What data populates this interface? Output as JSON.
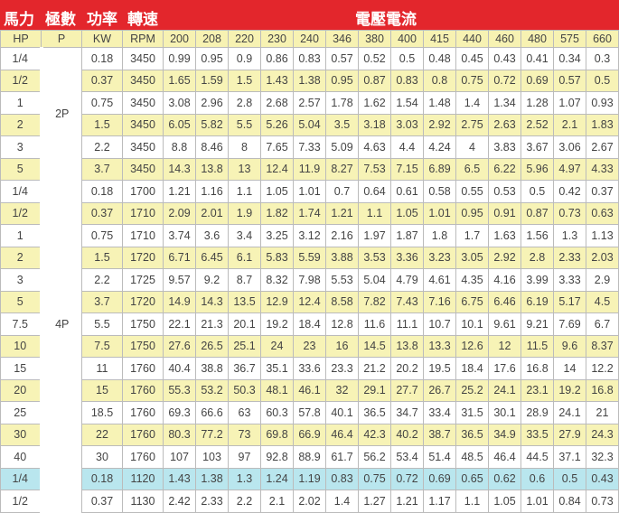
{
  "header": {
    "hp_title": "馬力",
    "pole_title": "極數",
    "power_title": "功率",
    "speed_title": "轉速",
    "voltage_title": "電壓電流",
    "columns": [
      "HP",
      "P",
      "KW",
      "RPM",
      "200",
      "208",
      "220",
      "230",
      "240",
      "346",
      "380",
      "400",
      "415",
      "440",
      "460",
      "480",
      "575",
      "660"
    ]
  },
  "colors": {
    "header_red": "#e3262c",
    "stripe_yellow": "#f7f3b6",
    "highlight_cyan": "#b9e6ee"
  },
  "groups": [
    {
      "pole": "2P",
      "rows": [
        {
          "hp": "1/4",
          "kw": "0.18",
          "rpm": "3450",
          "style": "w",
          "v": [
            "0.99",
            "0.95",
            "0.9",
            "0.86",
            "0.83",
            "0.57",
            "0.52",
            "0.5",
            "0.48",
            "0.45",
            "0.43",
            "0.41",
            "0.34",
            "0.3"
          ]
        },
        {
          "hp": "1/2",
          "kw": "0.37",
          "rpm": "3450",
          "style": "y",
          "v": [
            "1.65",
            "1.59",
            "1.5",
            "1.43",
            "1.38",
            "0.95",
            "0.87",
            "0.83",
            "0.8",
            "0.75",
            "0.72",
            "0.69",
            "0.57",
            "0.5"
          ]
        },
        {
          "hp": "1",
          "kw": "0.75",
          "rpm": "3450",
          "style": "w",
          "v": [
            "3.08",
            "2.96",
            "2.8",
            "2.68",
            "2.57",
            "1.78",
            "1.62",
            "1.54",
            "1.48",
            "1.4",
            "1.34",
            "1.28",
            "1.07",
            "0.93"
          ]
        },
        {
          "hp": "2",
          "kw": "1.5",
          "rpm": "3450",
          "style": "y",
          "v": [
            "6.05",
            "5.82",
            "5.5",
            "5.26",
            "5.04",
            "3.5",
            "3.18",
            "3.03",
            "2.92",
            "2.75",
            "2.63",
            "2.52",
            "2.1",
            "1.83"
          ]
        },
        {
          "hp": "3",
          "kw": "2.2",
          "rpm": "3450",
          "style": "w",
          "v": [
            "8.8",
            "8.46",
            "8",
            "7.65",
            "7.33",
            "5.09",
            "4.63",
            "4.4",
            "4.24",
            "4",
            "3.83",
            "3.67",
            "3.06",
            "2.67"
          ]
        },
        {
          "hp": "5",
          "kw": "3.7",
          "rpm": "3450",
          "style": "y",
          "v": [
            "14.3",
            "13.8",
            "13",
            "12.4",
            "11.9",
            "8.27",
            "7.53",
            "7.15",
            "6.89",
            "6.5",
            "6.22",
            "5.96",
            "4.97",
            "4.33"
          ]
        }
      ]
    },
    {
      "pole": "4P",
      "rows": [
        {
          "hp": "1/4",
          "kw": "0.18",
          "rpm": "1700",
          "style": "w",
          "v": [
            "1.21",
            "1.16",
            "1.1",
            "1.05",
            "1.01",
            "0.7",
            "0.64",
            "0.61",
            "0.58",
            "0.55",
            "0.53",
            "0.5",
            "0.42",
            "0.37"
          ]
        },
        {
          "hp": "1/2",
          "kw": "0.37",
          "rpm": "1710",
          "style": "y",
          "v": [
            "2.09",
            "2.01",
            "1.9",
            "1.82",
            "1.74",
            "1.21",
            "1.1",
            "1.05",
            "1.01",
            "0.95",
            "0.91",
            "0.87",
            "0.73",
            "0.63"
          ]
        },
        {
          "hp": "1",
          "kw": "0.75",
          "rpm": "1710",
          "style": "w",
          "v": [
            "3.74",
            "3.6",
            "3.4",
            "3.25",
            "3.12",
            "2.16",
            "1.97",
            "1.87",
            "1.8",
            "1.7",
            "1.63",
            "1.56",
            "1.3",
            "1.13"
          ]
        },
        {
          "hp": "2",
          "kw": "1.5",
          "rpm": "1720",
          "style": "y",
          "v": [
            "6.71",
            "6.45",
            "6.1",
            "5.83",
            "5.59",
            "3.88",
            "3.53",
            "3.36",
            "3.23",
            "3.05",
            "2.92",
            "2.8",
            "2.33",
            "2.03"
          ]
        },
        {
          "hp": "3",
          "kw": "2.2",
          "rpm": "1725",
          "style": "w",
          "v": [
            "9.57",
            "9.2",
            "8.7",
            "8.32",
            "7.98",
            "5.53",
            "5.04",
            "4.79",
            "4.61",
            "4.35",
            "4.16",
            "3.99",
            "3.33",
            "2.9"
          ]
        },
        {
          "hp": "5",
          "kw": "3.7",
          "rpm": "1720",
          "style": "y",
          "v": [
            "14.9",
            "14.3",
            "13.5",
            "12.9",
            "12.4",
            "8.58",
            "7.82",
            "7.43",
            "7.16",
            "6.75",
            "6.46",
            "6.19",
            "5.17",
            "4.5"
          ]
        },
        {
          "hp": "7.5",
          "kw": "5.5",
          "rpm": "1750",
          "style": "w",
          "v": [
            "22.1",
            "21.3",
            "20.1",
            "19.2",
            "18.4",
            "12.8",
            "11.6",
            "11.1",
            "10.7",
            "10.1",
            "9.61",
            "9.21",
            "7.69",
            "6.7"
          ]
        },
        {
          "hp": "10",
          "kw": "7.5",
          "rpm": "1750",
          "style": "y",
          "v": [
            "27.6",
            "26.5",
            "25.1",
            "24",
            "23",
            "16",
            "14.5",
            "13.8",
            "13.3",
            "12.6",
            "12",
            "11.5",
            "9.6",
            "8.37"
          ]
        },
        {
          "hp": "15",
          "kw": "11",
          "rpm": "1760",
          "style": "w",
          "v": [
            "40.4",
            "38.8",
            "36.7",
            "35.1",
            "33.6",
            "23.3",
            "21.2",
            "20.2",
            "19.5",
            "18.4",
            "17.6",
            "16.8",
            "14",
            "12.2"
          ]
        },
        {
          "hp": "20",
          "kw": "15",
          "rpm": "1760",
          "style": "y",
          "v": [
            "55.3",
            "53.2",
            "50.3",
            "48.1",
            "46.1",
            "32",
            "29.1",
            "27.7",
            "26.7",
            "25.2",
            "24.1",
            "23.1",
            "19.2",
            "16.8"
          ]
        },
        {
          "hp": "25",
          "kw": "18.5",
          "rpm": "1760",
          "style": "w",
          "v": [
            "69.3",
            "66.6",
            "63",
            "60.3",
            "57.8",
            "40.1",
            "36.5",
            "34.7",
            "33.4",
            "31.5",
            "30.1",
            "28.9",
            "24.1",
            "21"
          ]
        },
        {
          "hp": "30",
          "kw": "22",
          "rpm": "1760",
          "style": "y",
          "v": [
            "80.3",
            "77.2",
            "73",
            "69.8",
            "66.9",
            "46.4",
            "42.3",
            "40.2",
            "38.7",
            "36.5",
            "34.9",
            "33.5",
            "27.9",
            "24.3"
          ]
        },
        {
          "hp": "40",
          "kw": "30",
          "rpm": "1760",
          "style": "w",
          "v": [
            "107",
            "103",
            "97",
            "92.8",
            "88.9",
            "61.7",
            "56.2",
            "53.4",
            "51.4",
            "48.5",
            "46.4",
            "44.5",
            "37.1",
            "32.3"
          ]
        }
      ]
    },
    {
      "pole": "",
      "rows": [
        {
          "hp": "1/4",
          "kw": "0.18",
          "rpm": "1120",
          "style": "c",
          "v": [
            "1.43",
            "1.38",
            "1.3",
            "1.24",
            "1.19",
            "0.83",
            "0.75",
            "0.72",
            "0.69",
            "0.65",
            "0.62",
            "0.6",
            "0.5",
            "0.43"
          ]
        },
        {
          "hp": "1/2",
          "kw": "0.37",
          "rpm": "1130",
          "style": "w",
          "v": [
            "2.42",
            "2.33",
            "2.2",
            "2.1",
            "2.02",
            "1.4",
            "1.27",
            "1.21",
            "1.17",
            "1.1",
            "1.05",
            "1.01",
            "0.84",
            "0.73"
          ]
        }
      ]
    }
  ]
}
